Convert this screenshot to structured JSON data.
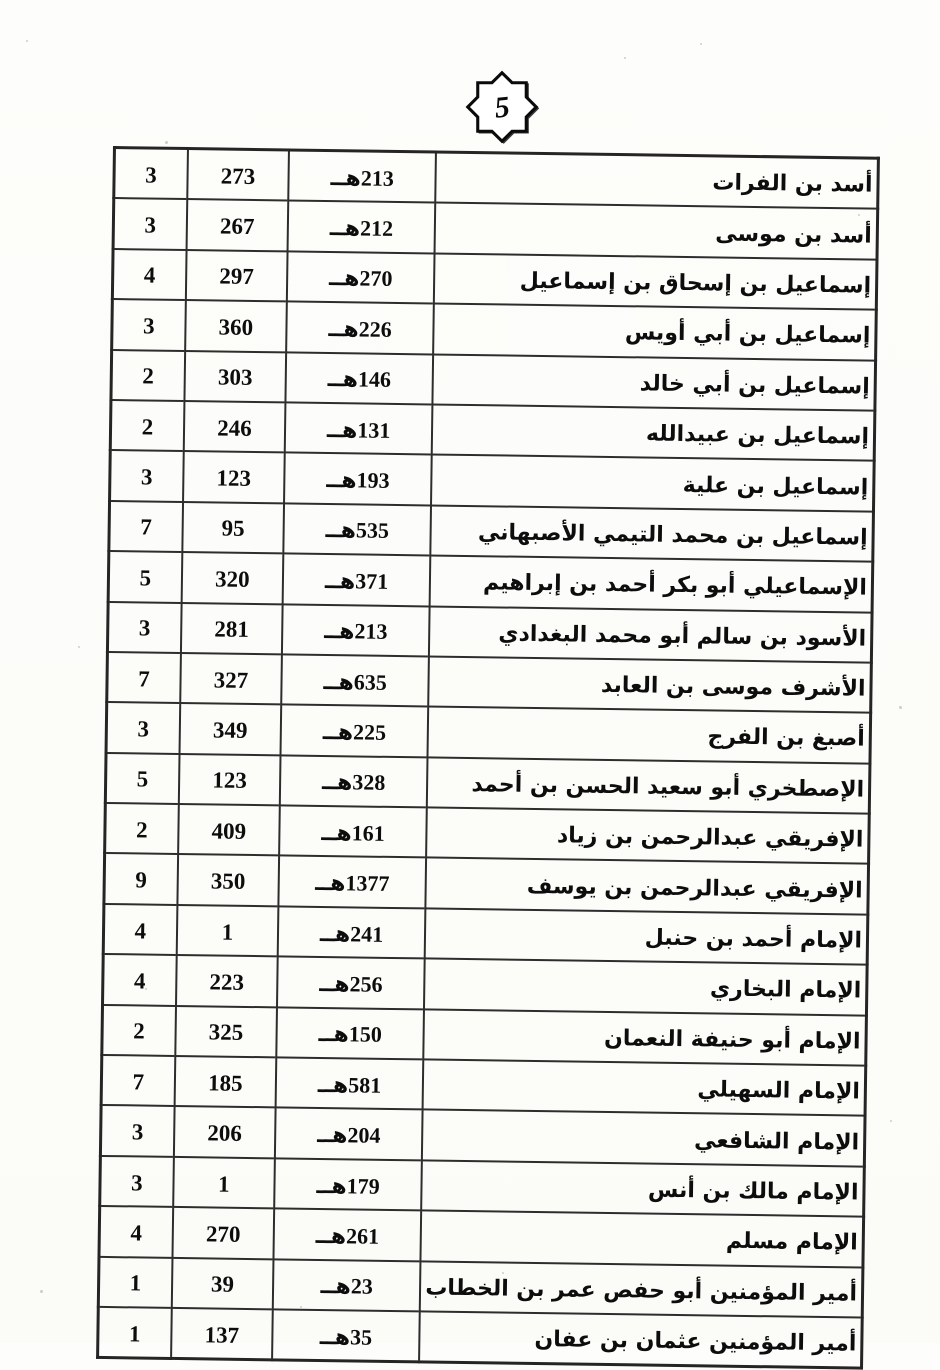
{
  "page": {
    "number": "5"
  },
  "colors": {
    "paper": "#fdfdfb",
    "ink": "#0d0d0d",
    "border": "#2d2d2d"
  },
  "table": {
    "rows": [
      {
        "name": "أسد بن الفرات",
        "year": "213هــ",
        "number": "273",
        "count": "3"
      },
      {
        "name": "أسد بن موسى",
        "year": "212هــ",
        "number": "267",
        "count": "3"
      },
      {
        "name": "إسماعيل بن إسحاق بن إسماعيل",
        "year": "270هــ",
        "number": "297",
        "count": "4"
      },
      {
        "name": "إسماعيل بن أبي أويس",
        "year": "226هــ",
        "number": "360",
        "count": "3"
      },
      {
        "name": "إسماعيل بن أبي خالد",
        "year": "146هــ",
        "number": "303",
        "count": "2"
      },
      {
        "name": "إسماعيل بن عبيدالله",
        "year": "131هــ",
        "number": "246",
        "count": "2"
      },
      {
        "name": "إسماعيل بن علية",
        "year": "193هــ",
        "number": "123",
        "count": "3"
      },
      {
        "name": "إسماعيل بن محمد التيمي الأصبهاني",
        "year": "535هــ",
        "number": "95",
        "count": "7"
      },
      {
        "name": "الإسماعيلي أبو بكر أحمد بن إبراهيم",
        "year": "371هــ",
        "number": "320",
        "count": "5"
      },
      {
        "name": "الأسود بن سالم أبو محمد البغدادي",
        "year": "213هــ",
        "number": "281",
        "count": "3"
      },
      {
        "name": "الأشرف موسى بن العابد",
        "year": "635هــ",
        "number": "327",
        "count": "7"
      },
      {
        "name": "أصبغ بن الفرج",
        "year": "225هــ",
        "number": "349",
        "count": "3"
      },
      {
        "name": "الإصطخري أبو سعيد الحسن بن أحمد",
        "year": "328هــ",
        "number": "123",
        "count": "5"
      },
      {
        "name": "الإفريقي عبدالرحمن بن زياد",
        "year": "161هــ",
        "number": "409",
        "count": "2"
      },
      {
        "name": "الإفريقي عبدالرحمن بن يوسف",
        "year": "1377هــ",
        "number": "350",
        "count": "9"
      },
      {
        "name": "الإمام أحمد بن حنبل",
        "year": "241هــ",
        "number": "1",
        "count": "4"
      },
      {
        "name": "الإمام البخاري",
        "year": "256هــ",
        "number": "223",
        "count": "4"
      },
      {
        "name": "الإمام أبو حنيفة النعمان",
        "year": "150هــ",
        "number": "325",
        "count": "2"
      },
      {
        "name": "الإمام السهيلي",
        "year": "581هــ",
        "number": "185",
        "count": "7"
      },
      {
        "name": "الإمام الشافعي",
        "year": "204هــ",
        "number": "206",
        "count": "3"
      },
      {
        "name": "الإمام مالك بن أنس",
        "year": "179هــ",
        "number": "1",
        "count": "3"
      },
      {
        "name": "الإمام مسلم",
        "year": "261هــ",
        "number": "270",
        "count": "4"
      },
      {
        "name": "أمير المؤمنين أبو حفص عمر بن الخطاب",
        "year": "23هــ",
        "number": "39",
        "count": "1"
      },
      {
        "name": "أمير المؤمنين عثمان بن عفان",
        "year": "35هــ",
        "number": "137",
        "count": "1"
      }
    ]
  }
}
